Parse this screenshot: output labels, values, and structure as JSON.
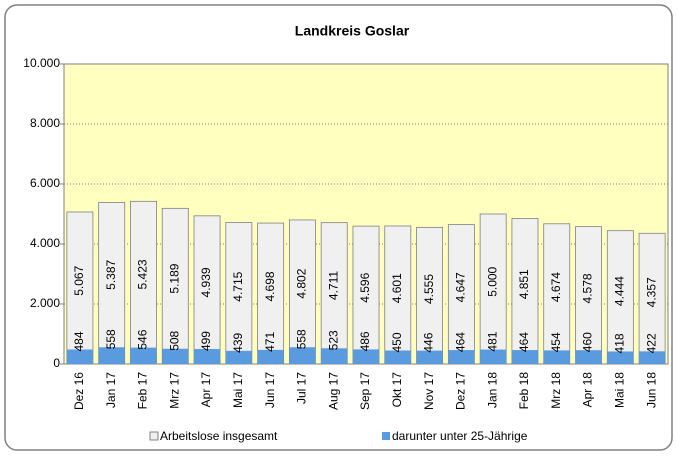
{
  "chart_data": {
    "type": "bar",
    "title": "Landkreis Goslar",
    "categories": [
      "Dez 16",
      "Jan 17",
      "Feb 17",
      "Mrz 17",
      "Apr 17",
      "Mai 17",
      "Jun 17",
      "Jul 17",
      "Aug 17",
      "Sep 17",
      "Okt 17",
      "Nov 17",
      "Dez 17",
      "Jan 18",
      "Feb 18",
      "Mrz 18",
      "Apr 18",
      "Mai 18",
      "Jun 18"
    ],
    "series": [
      {
        "name": "Arbeitslose insgesamt",
        "color": "#f0f0f0",
        "values": [
          5067,
          5387,
          5423,
          5189,
          4939,
          4715,
          4698,
          4802,
          4711,
          4596,
          4601,
          4555,
          4647,
          5000,
          4851,
          4674,
          4578,
          4444,
          4357
        ],
        "value_labels": [
          "5.067",
          "5.387",
          "5.423",
          "5.189",
          "4.939",
          "4.715",
          "4.698",
          "4.802",
          "4.711",
          "4.596",
          "4.601",
          "4.555",
          "4.647",
          "5.000",
          "4.851",
          "4.674",
          "4.578",
          "4.444",
          "4.357"
        ]
      },
      {
        "name": "darunter unter 25-Jährige",
        "color": "#5a9be0",
        "values": [
          484,
          558,
          546,
          508,
          499,
          439,
          471,
          558,
          523,
          486,
          450,
          446,
          464,
          481,
          464,
          454,
          460,
          418,
          422
        ]
      }
    ],
    "ylim": [
      0,
      10000
    ],
    "yticks": [
      0,
      {
        "value": 2000,
        "label": "2.000"
      },
      {
        "value": 4000,
        "label": "4.000"
      },
      {
        "value": 6000,
        "label": "6.000"
      },
      {
        "value": 8000,
        "label": "8.000"
      },
      {
        "value": 10000,
        "label": "10.000"
      }
    ],
    "grid": true,
    "legend": "bottom"
  }
}
